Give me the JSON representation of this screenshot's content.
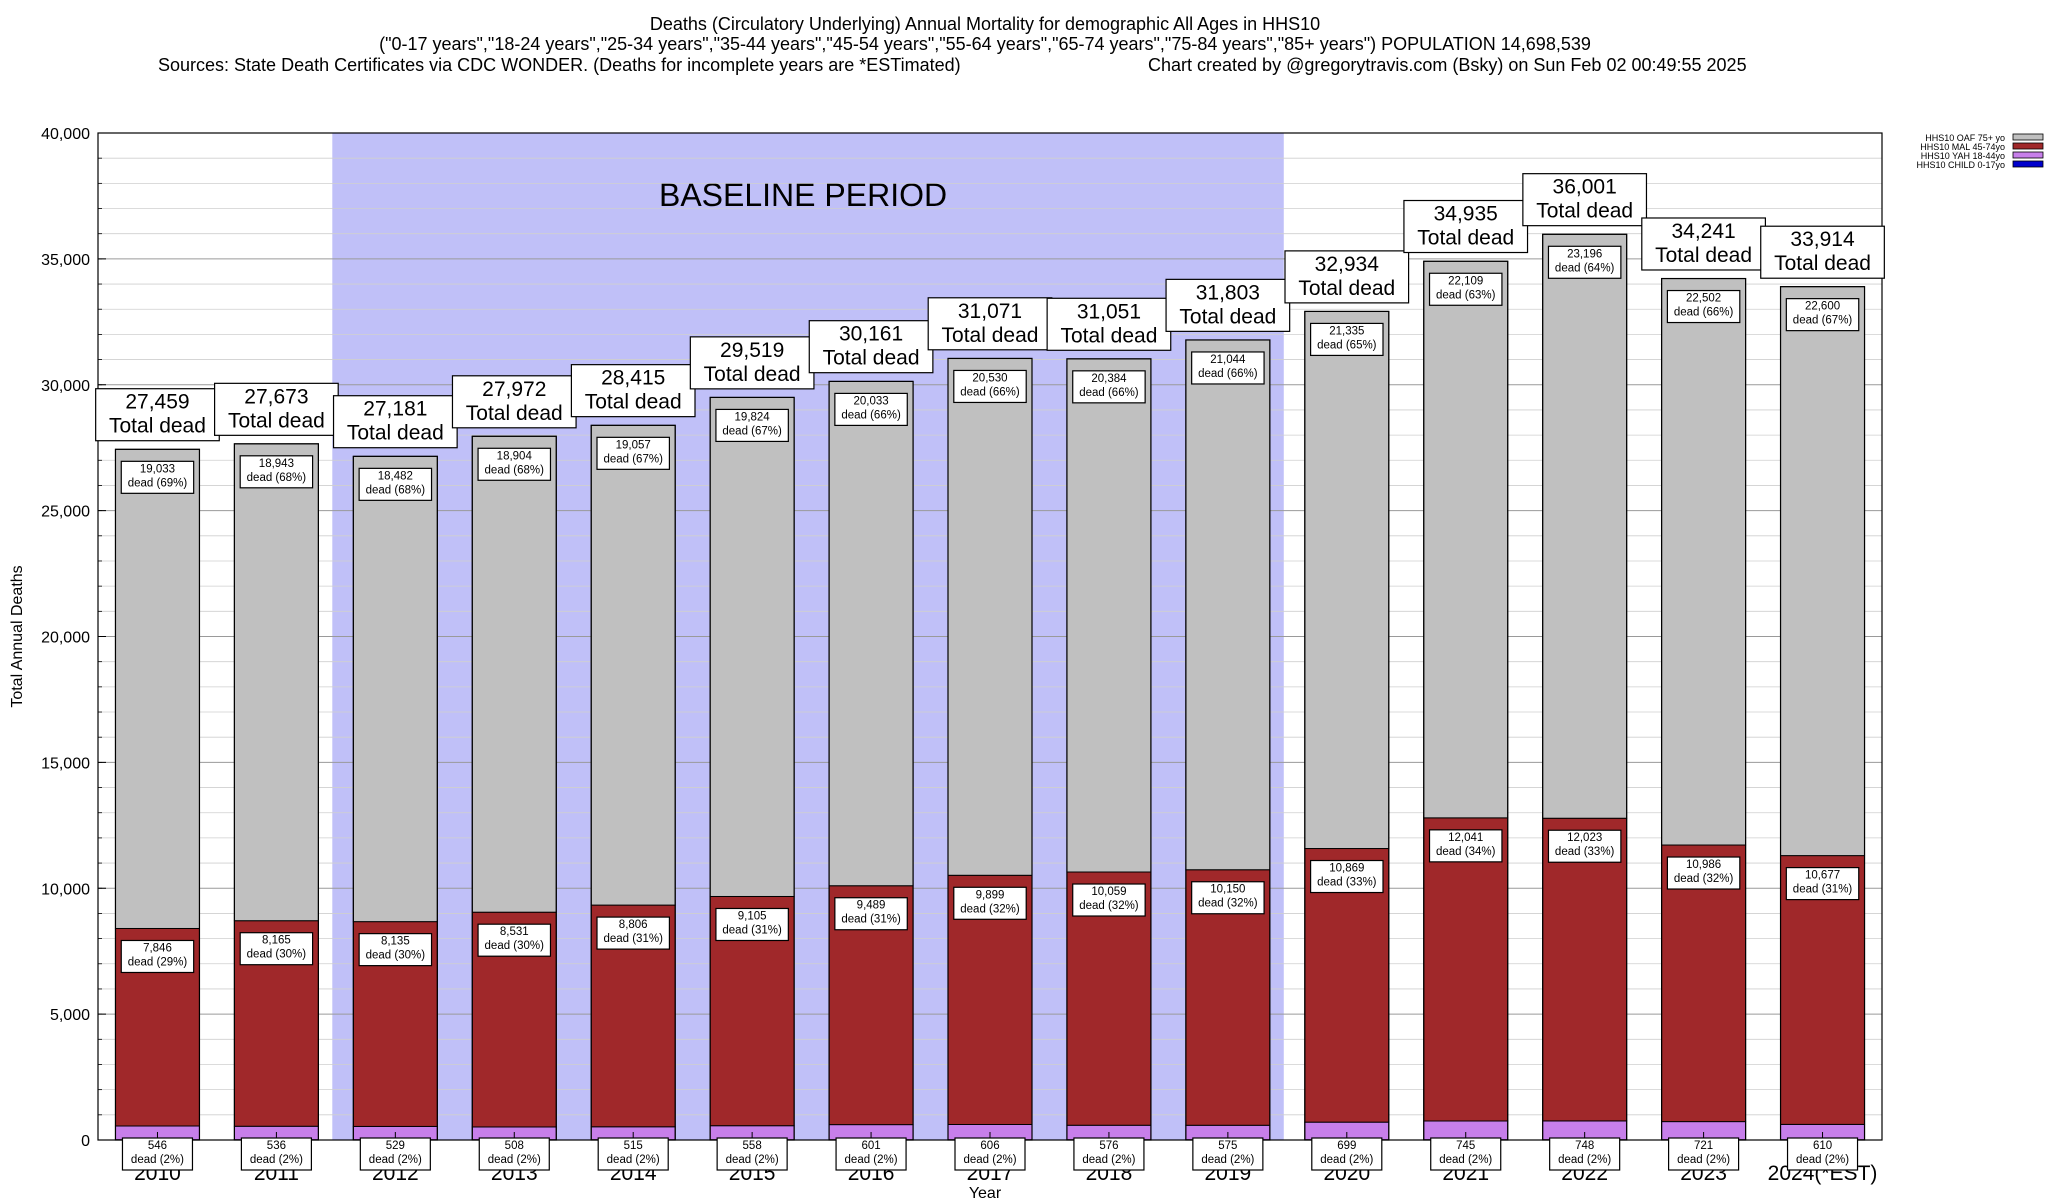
{
  "chart_data": {
    "type": "bar",
    "stacked": true,
    "title_lines": [
      "Deaths (Circulatory Underlying) Annual Mortality for demographic All Ages in HHS10",
      "(\"0-17 years\",\"18-24 years\",\"25-34 years\",\"35-44 years\",\"45-54 years\",\"55-64 years\",\"65-74 years\",\"75-84 years\",\"85+ years\") POPULATION 14,698,539",
      "Sources: State Death Certificates via CDC WONDER. (Deaths for incomplete years are *ESTimated)",
      "Chart created by @gregorytravis.com (Bsky) on Sun Feb 02 00:49:55 2025"
    ],
    "xlabel": "Year",
    "ylabel": "Total Annual Deaths",
    "ylim": [
      0,
      40000
    ],
    "y_major_step": 5000,
    "y_minor_step": 1000,
    "y_tick_labels": [
      "0",
      "5,000",
      "10,000",
      "15,000",
      "20,000",
      "25,000",
      "30,000",
      "35,000",
      "40,000"
    ],
    "grid": true,
    "legend_position": "top-right",
    "categories": [
      "2010",
      "2011",
      "2012",
      "2013",
      "2014",
      "2015",
      "2016",
      "2017",
      "2018",
      "2019",
      "2020",
      "2021",
      "2022",
      "2023",
      "2024(*EST)"
    ],
    "series": [
      {
        "name": "HHS10 CHILD 0-17yo",
        "color": "#0000cc",
        "values": [
          10,
          10,
          10,
          10,
          10,
          10,
          10,
          10,
          10,
          10,
          10,
          10,
          10,
          10,
          10
        ],
        "labels": []
      },
      {
        "name": "HHS10 YAH 18-44yo",
        "color": "#c77fea",
        "values": [
          546,
          536,
          529,
          508,
          515,
          558,
          601,
          606,
          576,
          575,
          699,
          745,
          748,
          721,
          610
        ],
        "labels": [
          "546",
          "536",
          "529",
          "508",
          "515",
          "558",
          "601",
          "606",
          "576",
          "575",
          "699",
          "745",
          "748",
          "721",
          "610"
        ],
        "pcts": [
          "dead (2%)",
          "dead (2%)",
          "dead (2%)",
          "dead (2%)",
          "dead (2%)",
          "dead (2%)",
          "dead (2%)",
          "dead (2%)",
          "dead (2%)",
          "dead (2%)",
          "dead (2%)",
          "dead (2%)",
          "dead (2%)",
          "dead (2%)",
          "dead (2%)"
        ]
      },
      {
        "name": "HHS10 MAL 45-74yo",
        "color": "#a0282a",
        "values": [
          7846,
          8165,
          8135,
          8531,
          8806,
          9105,
          9489,
          9899,
          10059,
          10150,
          10869,
          12041,
          12023,
          10986,
          10677
        ],
        "labels": [
          "7,846",
          "8,165",
          "8,135",
          "8,531",
          "8,806",
          "9,105",
          "9,489",
          "9,899",
          "10,059",
          "10,150",
          "10,869",
          "12,041",
          "12,023",
          "10,986",
          "10,677"
        ],
        "pcts": [
          "dead (29%)",
          "dead (30%)",
          "dead (30%)",
          "dead (30%)",
          "dead (31%)",
          "dead (31%)",
          "dead (31%)",
          "dead (32%)",
          "dead (32%)",
          "dead (32%)",
          "dead (33%)",
          "dead (34%)",
          "dead (33%)",
          "dead (32%)",
          "dead (31%)"
        ]
      },
      {
        "name": "HHS10 OAF 75+ yo",
        "color": "#c0c0c0",
        "values": [
          19033,
          18943,
          18482,
          18904,
          19057,
          19824,
          20033,
          20530,
          20384,
          21044,
          21335,
          22109,
          23196,
          22502,
          22600
        ],
        "labels": [
          "19,033",
          "18,943",
          "18,482",
          "18,904",
          "19,057",
          "19,824",
          "20,033",
          "20,530",
          "20,384",
          "21,044",
          "21,335",
          "22,109",
          "23,196",
          "22,502",
          "22,600"
        ],
        "pcts": [
          "dead (69%)",
          "dead (68%)",
          "dead (68%)",
          "dead (68%)",
          "dead (67%)",
          "dead (67%)",
          "dead (66%)",
          "dead (66%)",
          "dead (66%)",
          "dead (66%)",
          "dead (65%)",
          "dead (63%)",
          "dead (64%)",
          "dead (66%)",
          "dead (67%)"
        ]
      }
    ],
    "totals": [
      27459,
      27673,
      27181,
      27972,
      28415,
      29519,
      30161,
      31071,
      31051,
      31803,
      32934,
      34935,
      36001,
      34241,
      33914
    ],
    "total_labels": [
      "27,459",
      "27,673",
      "27,181",
      "27,972",
      "28,415",
      "29,519",
      "30,161",
      "31,071",
      "31,051",
      "31,803",
      "32,934",
      "34,935",
      "36,001",
      "34,241",
      "33,914"
    ],
    "total_suffix": "Total dead",
    "baseline": {
      "label": "BASELINE PERIOD",
      "from": "2012",
      "to": "2019",
      "color": "#c0c0f8"
    }
  }
}
